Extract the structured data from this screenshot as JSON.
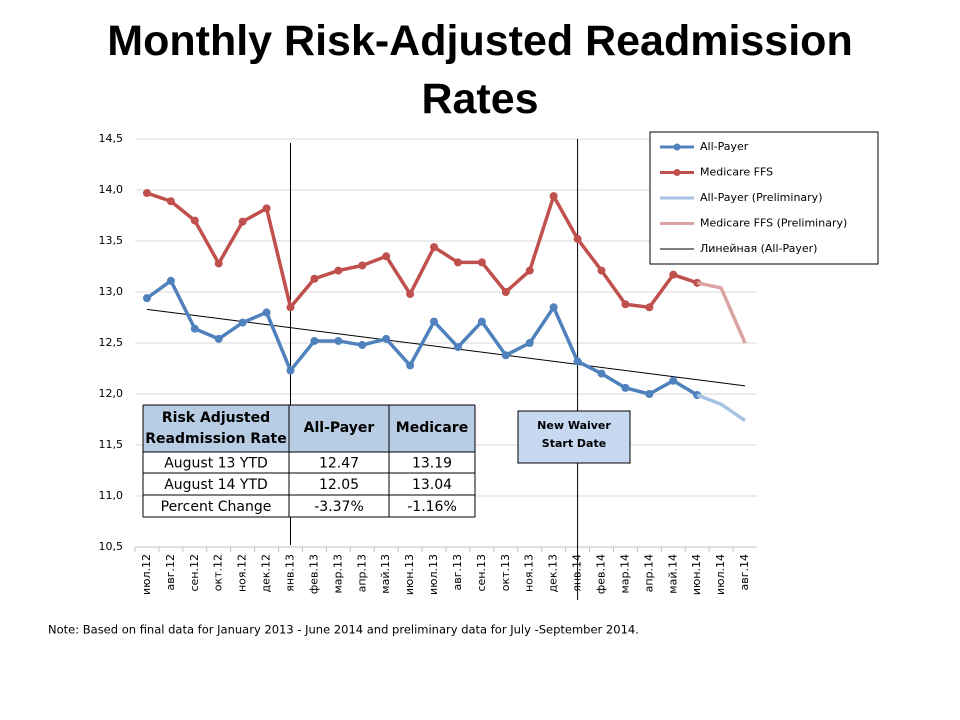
{
  "chart_data": {
    "type": "line",
    "title": "Monthly Risk-Adjusted Readmission Rates",
    "categories": [
      "июл.12",
      "авг.12",
      "сен.12",
      "окт.12",
      "ноя.12",
      "дек.12",
      "янв.13",
      "фев.13",
      "мар.13",
      "апр.13",
      "май.13",
      "июн.13",
      "июл.13",
      "авг.13",
      "сен.13",
      "окт.13",
      "ноя.13",
      "дек.13",
      "янв.14",
      "фев.14",
      "мар.14",
      "апр.14",
      "май.14",
      "июн.14",
      "июл.14",
      "авг.14"
    ],
    "series": [
      {
        "name": "All-Payer",
        "color": "#4f81bd",
        "markers": true,
        "values": [
          12.94,
          13.11,
          12.64,
          12.54,
          12.7,
          12.8,
          12.23,
          12.52,
          12.52,
          12.48,
          12.54,
          12.28,
          12.71,
          12.46,
          12.71,
          12.38,
          12.5,
          12.85,
          12.32,
          12.2,
          12.06,
          12.0,
          12.13,
          11.99,
          null,
          null
        ]
      },
      {
        "name": "Medicare FFS",
        "color": "#c0504d",
        "markers": true,
        "values": [
          13.97,
          13.89,
          13.7,
          13.28,
          13.69,
          13.82,
          12.85,
          13.13,
          13.21,
          13.26,
          13.35,
          12.98,
          13.44,
          13.29,
          13.29,
          13.0,
          13.21,
          13.94,
          13.52,
          13.21,
          12.88,
          12.85,
          13.17,
          13.09,
          null,
          null
        ]
      },
      {
        "name": "All-Payer (Preliminary)",
        "color": "#a7c2e3",
        "markers": false,
        "values": [
          null,
          null,
          null,
          null,
          null,
          null,
          null,
          null,
          null,
          null,
          null,
          null,
          null,
          null,
          null,
          null,
          null,
          null,
          null,
          null,
          null,
          null,
          null,
          11.99,
          11.9,
          11.74
        ]
      },
      {
        "name": "Medicare FFS (Preliminary)",
        "color": "#dba3a1",
        "markers": false,
        "values": [
          null,
          null,
          null,
          null,
          null,
          null,
          null,
          null,
          null,
          null,
          null,
          null,
          null,
          null,
          null,
          null,
          null,
          null,
          null,
          null,
          null,
          null,
          null,
          13.09,
          13.04,
          12.5
        ]
      }
    ],
    "trendline": {
      "name": "Линейная (All-Payer)",
      "color": "#000000",
      "start": 12.83,
      "end": 12.08
    },
    "ylim": [
      10.5,
      14.5
    ],
    "yticks": [
      {
        "value": 10.5,
        "label": "10,5"
      },
      {
        "value": 11,
        "label": "11,0"
      },
      {
        "value": 11.5,
        "label": "11,5"
      },
      {
        "value": 12,
        "label": "12,0"
      },
      {
        "value": 12.5,
        "label": "12,5"
      },
      {
        "value": 13,
        "label": "13,0"
      },
      {
        "value": 13.5,
        "label": "13,5"
      },
      {
        "value": 14,
        "label": "14,0"
      },
      {
        "value": 14.5,
        "label": "14,5"
      }
    ],
    "grid": true,
    "legend": "top-right",
    "annotation": "New Waiver Start Date",
    "note": "Note: Based on final data for January 2013 - June 2014 and preliminary data for July -September 2014."
  },
  "table": {
    "header": [
      "Risk Adjusted Readmission Rate",
      "All-Payer",
      "Medicare"
    ],
    "rows": [
      [
        "August 13 YTD",
        "12.47",
        "13.19"
      ],
      [
        "August 14 YTD",
        "12.05",
        "13.04"
      ],
      [
        "Percent Change",
        "-3.37%",
        "-1.16%"
      ]
    ]
  }
}
